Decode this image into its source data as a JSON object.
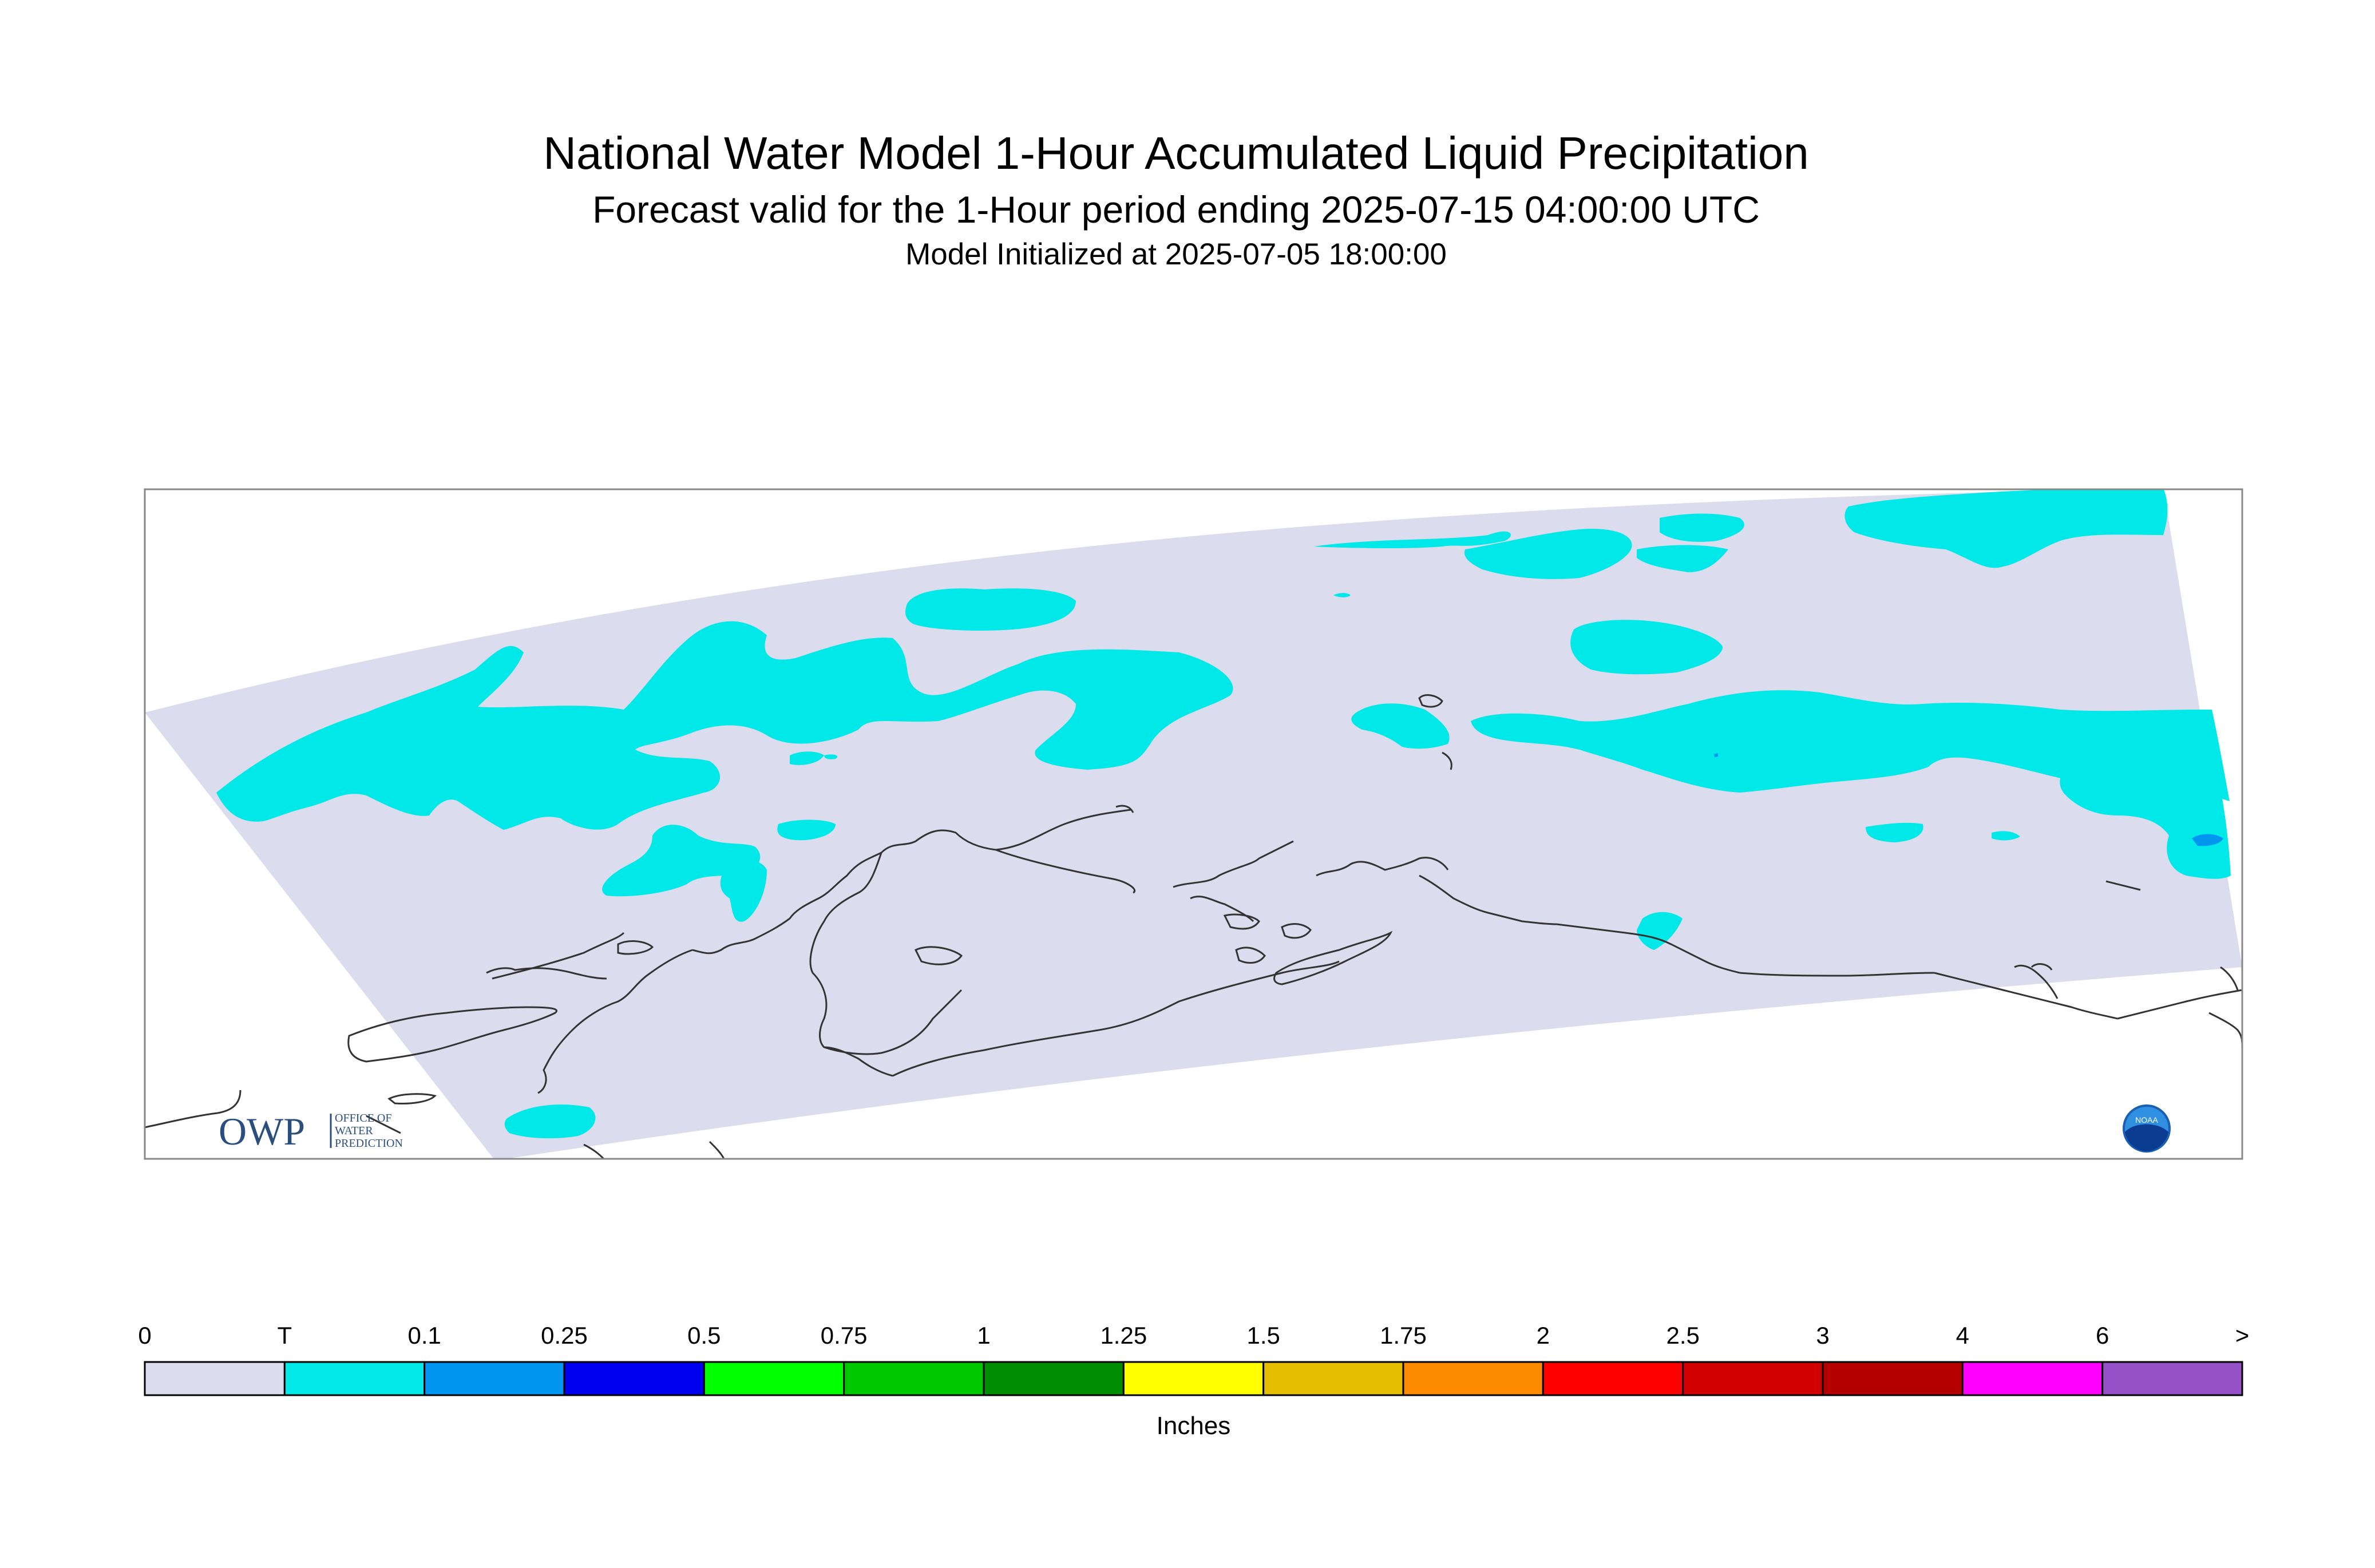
{
  "title": "National Water Model 1-Hour Accumulated Liquid Precipitation",
  "subtitle": "Forecast valid for the 1-Hour period ending 2025-07-15 04:00:00 UTC",
  "init_line": "Model Initialized at 2025-07-05 18:00:00",
  "logos": {
    "owp_mark": "OWP",
    "owp_lines": [
      "OFFICE OF",
      "WATER",
      "PREDICTION"
    ],
    "noaa_mark": "NOAA"
  },
  "colors": {
    "background_field": "#dcdcef",
    "trace": "#00e8e8",
    "light_blue": "#0096f0",
    "coastline": "#333333"
  },
  "legend": {
    "unit": "Inches",
    "labels": [
      "0",
      "T",
      "0.1",
      "0.25",
      "0.5",
      "0.75",
      "1",
      "1.25",
      "1.5",
      "1.75",
      "2",
      "2.5",
      "3",
      "4",
      "6",
      ">"
    ],
    "colors": [
      "#dcdcef",
      "#00e8e8",
      "#0096f0",
      "#0000f0",
      "#00ff00",
      "#00c800",
      "#008c00",
      "#ffff00",
      "#e6be00",
      "#ff8c00",
      "#ff0000",
      "#d20000",
      "#b40000",
      "#ff00ff",
      "#9650c8"
    ]
  }
}
